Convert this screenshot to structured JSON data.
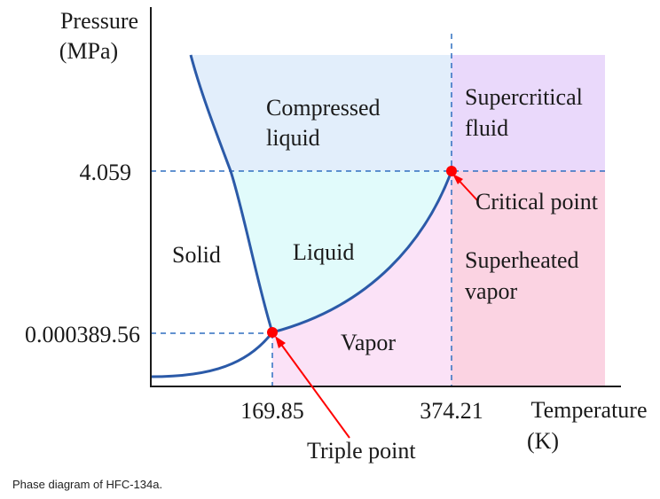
{
  "axes": {
    "y_title_line1": "Pressure",
    "y_title_line2": "(MPa)",
    "x_title_line1": "Temperature",
    "x_title_line2": "(K)",
    "y_ticks": [
      "4.059",
      "0.000389.56"
    ],
    "x_ticks": [
      "169.85",
      "374.21"
    ]
  },
  "regions": {
    "compressed_liquid": [
      "Compressed",
      "liquid"
    ],
    "supercritical_fluid": [
      "Supercritical",
      "fluid"
    ],
    "solid": "Solid",
    "liquid": "Liquid",
    "superheated_vapor": [
      "Superheated",
      "vapor"
    ],
    "vapor": "Vapor"
  },
  "points": {
    "critical_point": "Critical point",
    "triple_point": "Triple point"
  },
  "caption": "Phase diagram of HFC-134a.",
  "colors": {
    "compressed_liquid": "#e2eefb",
    "liquid": "#e1fbfb",
    "supercritical": "#ead9fb",
    "superheated": "#fbd3e2",
    "vapor": "#fbe2f7",
    "curve": "#2b5aa8",
    "dashed": "#2f6fc0",
    "point": "#ff0000"
  }
}
